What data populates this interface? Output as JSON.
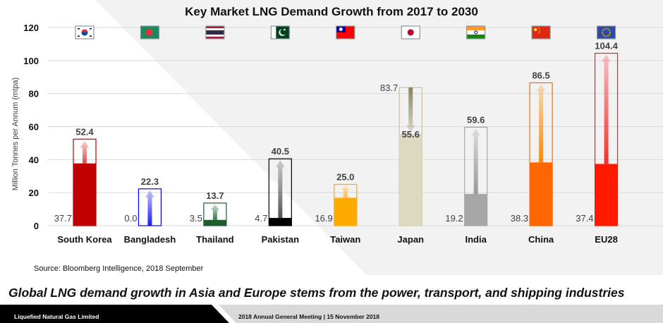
{
  "slide": {
    "source": "Source: Bloomberg Intelligence, 2018 September",
    "headline": "Global LNG demand growth in Asia and Europe stems from the power, transport, and shipping industries",
    "footer_left": "Liquefied Natural Gas Limited",
    "footer_right": "2018 Annual General Meeting  |  15 November 2018"
  },
  "chart_data": {
    "type": "bar",
    "title": "Key Market LNG Demand Growth from 2017 to 2030",
    "xlabel": "",
    "ylabel": "Million Tonnes per Annum (mtpa)",
    "ylim": [
      0,
      120
    ],
    "yticks": [
      0,
      20,
      40,
      60,
      80,
      100,
      120
    ],
    "grid": true,
    "categories": [
      "South Korea",
      "Bangladesh",
      "Thailand",
      "Pakistan",
      "Taiwan",
      "Japan",
      "India",
      "China",
      "EU28"
    ],
    "series": [
      {
        "name": "2017",
        "values": [
          37.7,
          0.0,
          3.5,
          4.7,
          16.9,
          83.7,
          19.2,
          38.3,
          37.4
        ]
      },
      {
        "name": "2030",
        "values": [
          52.4,
          22.3,
          13.7,
          40.5,
          25.0,
          55.6,
          59.6,
          86.5,
          104.4
        ]
      }
    ],
    "flags": [
      "south-korea-flag",
      "bangladesh-flag",
      "thailand-flag",
      "pakistan-flag",
      "taiwan-flag",
      "japan-flag",
      "india-flag",
      "china-flag",
      "eu-flag"
    ],
    "colors": [
      "#c00000",
      "#0000ff",
      "#1e5c2e",
      "#000000",
      "#ffaa00",
      "#ddd8c0",
      "#a6a6a6",
      "#ff6600",
      "#ff1a00"
    ],
    "arrow_colors": [
      "#d9534f",
      "#1a1aff",
      "#2e7d45",
      "#555555",
      "#ffc040",
      "#8c8560",
      "#999999",
      "#ff8800",
      "#ff2a2a"
    ]
  }
}
